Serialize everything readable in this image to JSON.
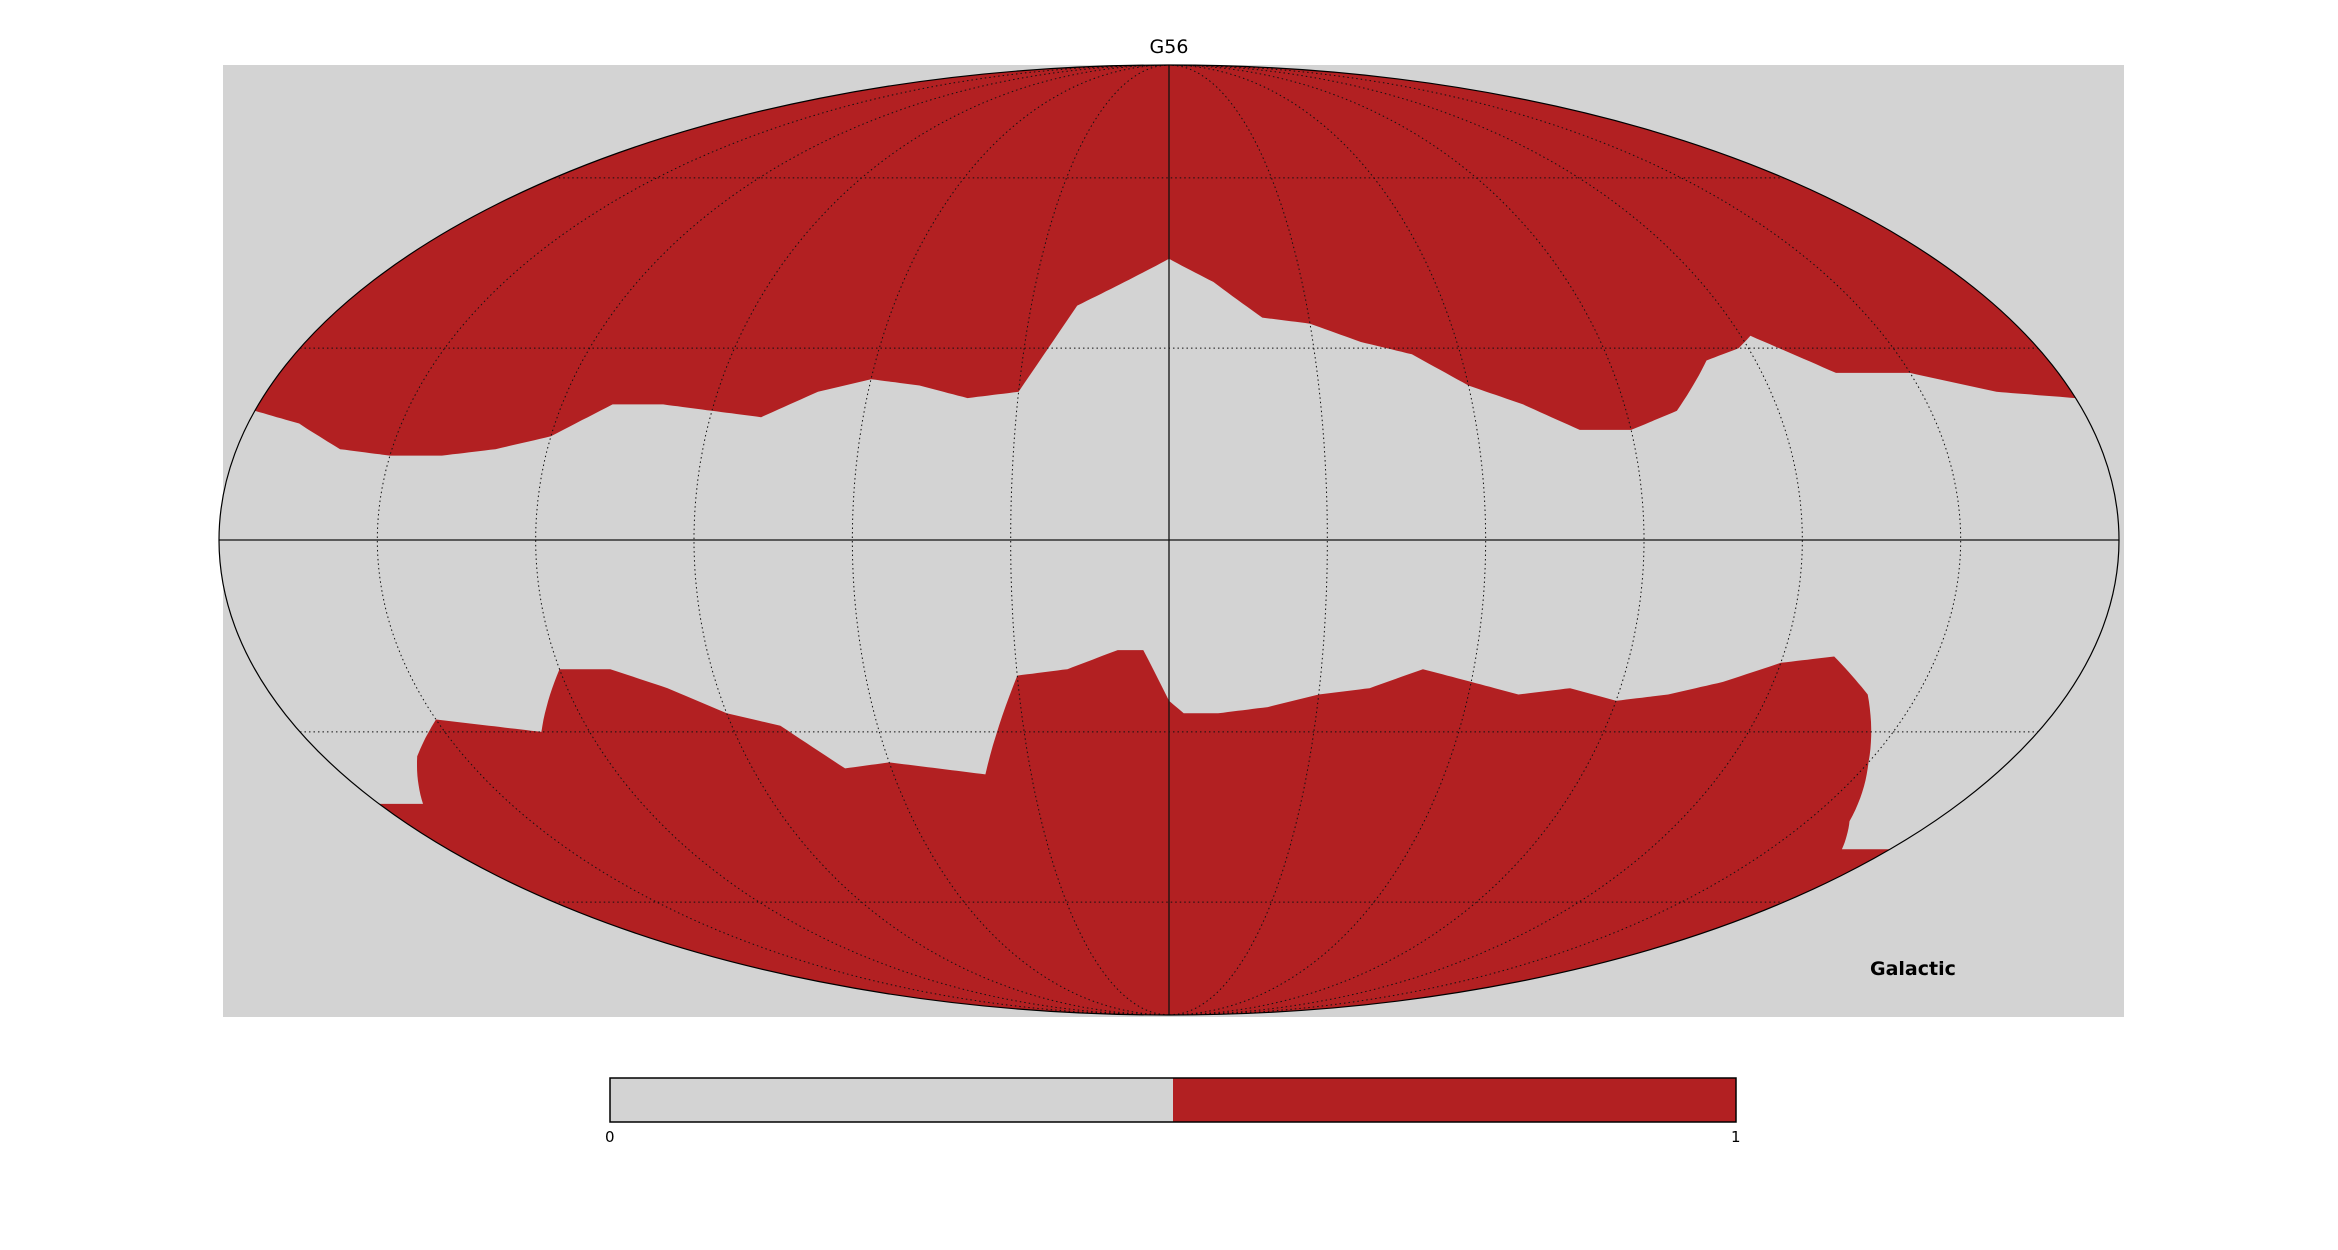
{
  "title": "G56",
  "coordinate_system": "Galactic",
  "projection": "mollweide",
  "graticule": true,
  "colors": {
    "background": "#d3d3d3",
    "masked": "#d3d3d3",
    "unmasked": "#b22022",
    "grid": "#222222"
  },
  "colorbar": {
    "min_label": "0",
    "max_label": "1",
    "colors": [
      "#d3d3d3",
      "#b22022"
    ]
  },
  "mask": {
    "description_values": [
      0,
      1
    ],
    "north_boundary_lat_deg": [
      [
        -180,
        22
      ],
      [
        -165,
        23
      ],
      [
        -150,
        26
      ],
      [
        -135,
        26
      ],
      [
        -122,
        32
      ],
      [
        -118,
        30
      ],
      [
        -110,
        28
      ],
      [
        -100,
        20
      ],
      [
        -90,
        17
      ],
      [
        -80,
        17
      ],
      [
        -70,
        21
      ],
      [
        -60,
        24
      ],
      [
        -50,
        29
      ],
      [
        -40,
        31
      ],
      [
        -30,
        34
      ],
      [
        -20,
        35
      ],
      [
        -10,
        41
      ],
      [
        0,
        45
      ],
      [
        10,
        41
      ],
      [
        20,
        37
      ],
      [
        25,
        30
      ],
      [
        30,
        23
      ],
      [
        40,
        22
      ],
      [
        50,
        24
      ],
      [
        60,
        25
      ],
      [
        70,
        23
      ],
      [
        80,
        19
      ],
      [
        90,
        20
      ],
      [
        100,
        21
      ],
      [
        110,
        21
      ],
      [
        120,
        16
      ],
      [
        130,
        14
      ],
      [
        140,
        13
      ],
      [
        150,
        13
      ],
      [
        160,
        14
      ],
      [
        170,
        18
      ],
      [
        180,
        20
      ]
    ],
    "south_boundary_lat_deg": [
      [
        -180,
        -50
      ],
      [
        -168,
        -50
      ],
      [
        -160,
        -45
      ],
      [
        -150,
        -35
      ],
      [
        -140,
        -24
      ],
      [
        -130,
        -18
      ],
      [
        -120,
        -19
      ],
      [
        -110,
        -22
      ],
      [
        -100,
        -24
      ],
      [
        -90,
        -25
      ],
      [
        -80,
        -23
      ],
      [
        -70,
        -24
      ],
      [
        -60,
        -22
      ],
      [
        -50,
        -20
      ],
      [
        -40,
        -23
      ],
      [
        -30,
        -24
      ],
      [
        -20,
        -26
      ],
      [
        -10,
        -27
      ],
      [
        -3,
        -27
      ],
      [
        0,
        -25
      ],
      [
        5,
        -17
      ],
      [
        10,
        -17
      ],
      [
        20,
        -20
      ],
      [
        30,
        -21
      ],
      [
        35,
        -29
      ],
      [
        40,
        -37
      ],
      [
        50,
        -36
      ],
      [
        60,
        -35
      ],
      [
        70,
        -36
      ],
      [
        80,
        -29
      ],
      [
        90,
        -27
      ],
      [
        100,
        -23
      ],
      [
        110,
        -20
      ],
      [
        120,
        -20
      ],
      [
        130,
        -30
      ],
      [
        140,
        -29
      ],
      [
        150,
        -28
      ],
      [
        160,
        -34
      ],
      [
        170,
        -42
      ],
      [
        180,
        -42
      ]
    ]
  }
}
